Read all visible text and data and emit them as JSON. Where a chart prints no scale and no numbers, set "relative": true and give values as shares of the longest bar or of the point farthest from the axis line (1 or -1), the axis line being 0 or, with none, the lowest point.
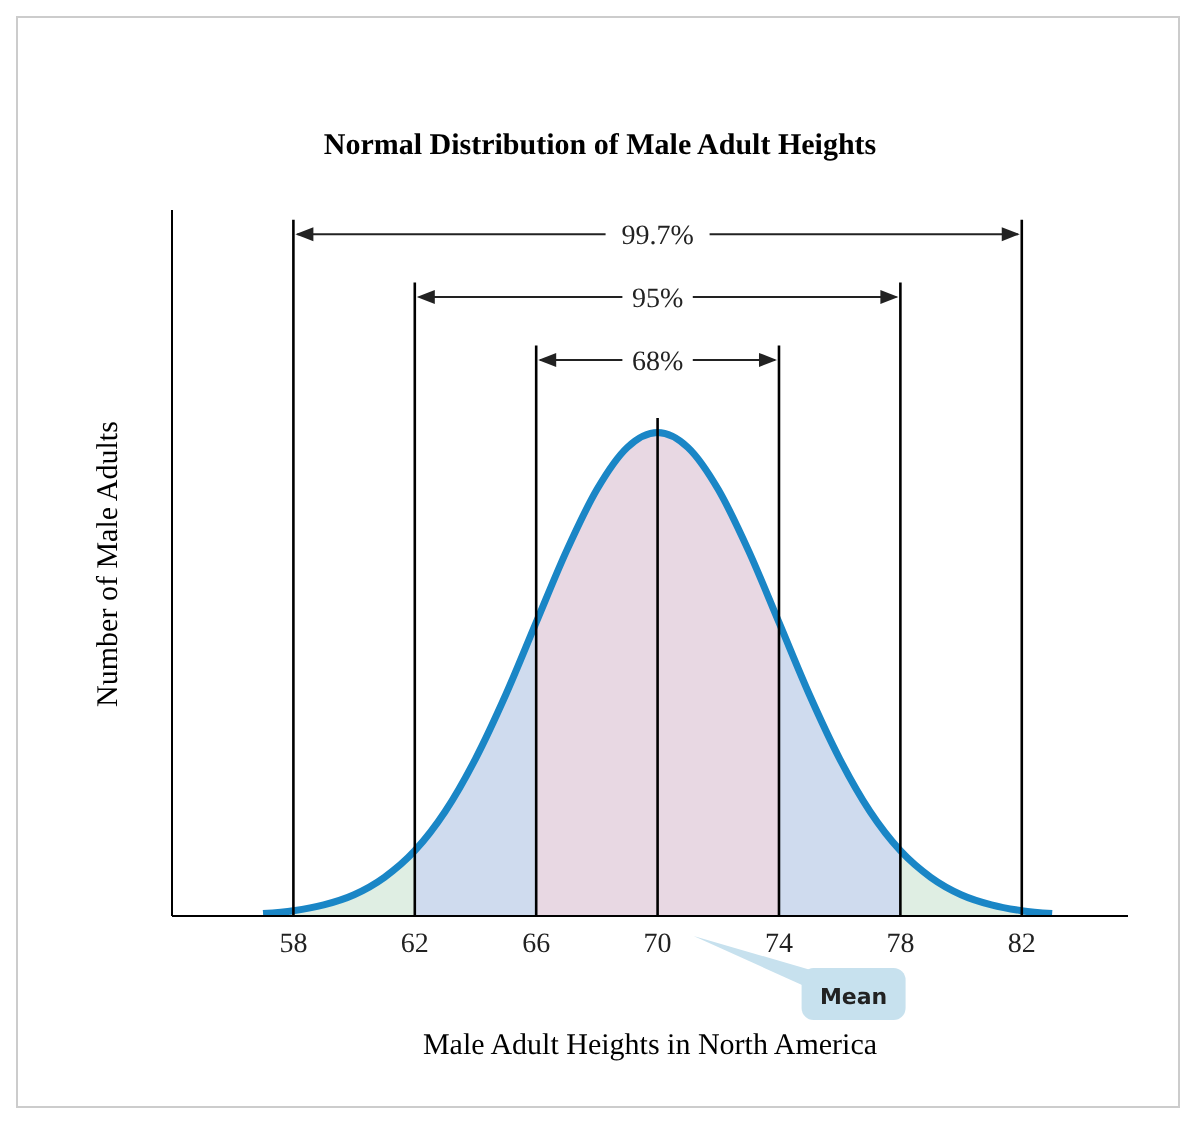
{
  "chart_data": {
    "type": "line",
    "relative": true,
    "title": "Normal Distribution of Male Adult Heights",
    "xlabel": "Male Adult Heights in North America",
    "ylabel": "Number of Male Adults",
    "xlim": [
      54,
      85.5
    ],
    "xticks": [
      58,
      62,
      66,
      70,
      74,
      78,
      82
    ],
    "series": [
      {
        "type": "area",
        "color": "#dfeee3",
        "x": [
          57,
          58,
          59,
          60,
          61,
          62
        ],
        "values": [
          0.005,
          0.011,
          0.023,
          0.044,
          0.08,
          0.135
        ]
      },
      {
        "type": "area",
        "color": "#cfdbee",
        "x": [
          62,
          63,
          64,
          65,
          66
        ],
        "values": [
          0.135,
          0.216,
          0.325,
          0.458,
          0.607
        ]
      },
      {
        "type": "area",
        "color": "#e8d8e3",
        "x": [
          66,
          67,
          68,
          69,
          70,
          71,
          72,
          73,
          74
        ],
        "values": [
          0.607,
          0.755,
          0.882,
          0.969,
          1,
          0.969,
          0.882,
          0.755,
          0.607
        ]
      },
      {
        "type": "area",
        "color": "#cfdbee",
        "x": [
          74,
          75,
          76,
          77,
          78
        ],
        "values": [
          0.607,
          0.458,
          0.325,
          0.216,
          0.135
        ]
      },
      {
        "type": "area",
        "color": "#dfeee3",
        "x": [
          78,
          79,
          80,
          81,
          82,
          83
        ],
        "values": [
          0.135,
          0.08,
          0.044,
          0.023,
          0.011,
          0.005
        ]
      },
      {
        "type": "line",
        "color": "#1a86c6",
        "x": [
          57,
          58,
          59,
          60,
          61,
          62,
          63,
          64,
          65,
          66,
          67,
          68,
          69,
          70,
          71,
          72,
          73,
          74,
          75,
          76,
          77,
          78,
          79,
          80,
          81,
          82,
          83
        ],
        "values": [
          0.005,
          0.011,
          0.023,
          0.044,
          0.08,
          0.135,
          0.216,
          0.325,
          0.458,
          0.607,
          0.755,
          0.882,
          0.969,
          1,
          0.969,
          0.882,
          0.755,
          0.607,
          0.458,
          0.325,
          0.216,
          0.135,
          0.08,
          0.044,
          0.023,
          0.011,
          0.005
        ]
      }
    ],
    "ref_lines": [
      {
        "axis": "x",
        "value": 58,
        "color": "#000000"
      },
      {
        "axis": "x",
        "value": 62,
        "color": "#000000"
      },
      {
        "axis": "x",
        "value": 66,
        "color": "#000000"
      },
      {
        "axis": "x",
        "value": 70,
        "color": "#000000",
        "label": "Mean"
      },
      {
        "axis": "x",
        "value": 74,
        "color": "#000000"
      },
      {
        "axis": "x",
        "value": 78,
        "color": "#000000"
      },
      {
        "axis": "x",
        "value": 82,
        "color": "#000000"
      }
    ],
    "annotations": [
      "68%",
      "95%",
      "99.7%"
    ]
  }
}
